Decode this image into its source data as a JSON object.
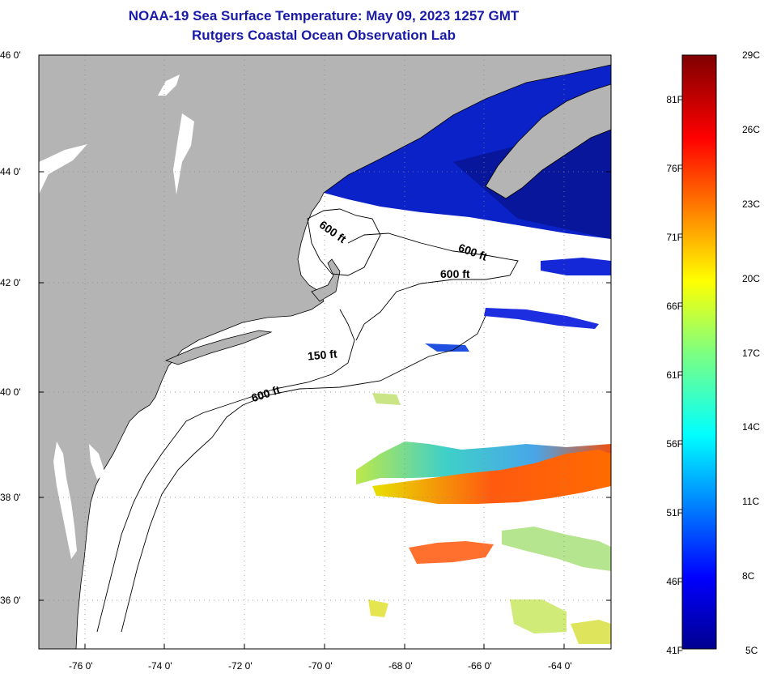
{
  "header": {
    "title": "NOAA-19 Sea Surface Temperature:  May 09, 2023 1257 GMT",
    "subtitle": "Rutgers Coastal Ocean Observation Lab"
  },
  "map": {
    "lat_labels": [
      "46 0'",
      "44 0'",
      "42 0'",
      "40 0'",
      "38 0'",
      "36 0'"
    ],
    "lon_labels": [
      "-76 0'",
      "-74 0'",
      "-72 0'",
      "-70 0'",
      "-68 0'",
      "-66 0'",
      "-64 0'"
    ],
    "contour_labels": [
      "600 ft",
      "600 ft",
      "600 ft",
      "150 ft",
      "600 ft"
    ],
    "colors": {
      "land": "#b4b4b4",
      "ocean_nodata": "#ffffff"
    }
  },
  "colorbar": {
    "fahrenheit_labels": [
      "81F",
      "76F",
      "71F",
      "66F",
      "61F",
      "56F",
      "51F",
      "46F",
      "41F"
    ],
    "celsius_labels": [
      "29C",
      "26C",
      "23C",
      "20C",
      "17C",
      "14C",
      "11C",
      "8C",
      "5C"
    ],
    "range_c": [
      5,
      29
    ],
    "colormap": "jet"
  }
}
